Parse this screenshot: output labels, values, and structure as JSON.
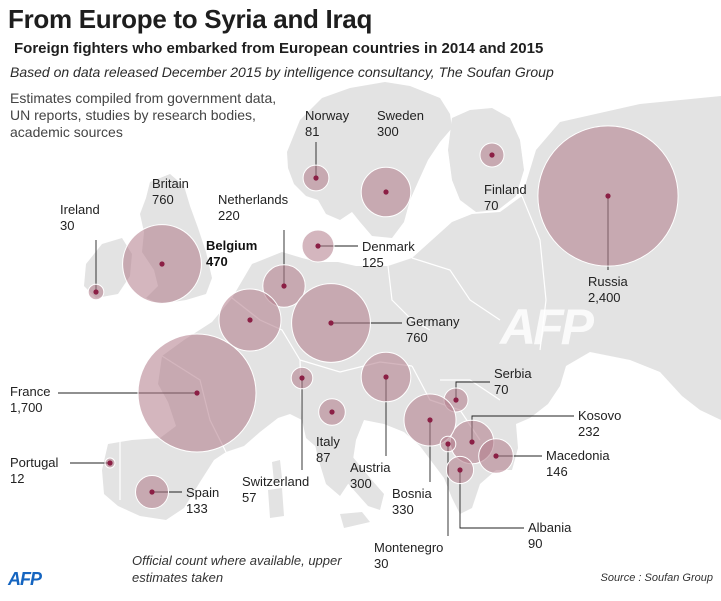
{
  "title": "From Europe to Syria and Iraq",
  "subtitle": "Foreign fighters who embarked from European countries in 2014 and 2015",
  "basis": "Based on data released December 2015 by intelligence consultancy, The Soufan Group",
  "methodology": "Estimates compiled from government data, UN reports, studies by research bodies, academic sources",
  "footnote": "Official count where available, upper estimates taken",
  "source": "Source : Soufan Group",
  "agency_logo": "AFP",
  "watermark": "AFP",
  "colors": {
    "bubble": "#b07a89",
    "dot": "#8b1f45",
    "land": "#e3e3e3",
    "sea": "#ffffff",
    "border": "#ffffff"
  },
  "countries": [
    {
      "id": "ireland",
      "name": "Ireland",
      "count": "30",
      "value": 30
    },
    {
      "id": "britain",
      "name": "Britain",
      "count": "760",
      "value": 760
    },
    {
      "id": "netherlands",
      "name": "Netherlands",
      "count": "220",
      "value": 220
    },
    {
      "id": "belgium",
      "name": "Belgium",
      "count": "470",
      "value": 470,
      "highlight": true
    },
    {
      "id": "norway",
      "name": "Norway",
      "count": "81",
      "value": 81
    },
    {
      "id": "sweden",
      "name": "Sweden",
      "count": "300",
      "value": 300
    },
    {
      "id": "finland",
      "name": "Finland",
      "count": "70",
      "value": 70
    },
    {
      "id": "denmark",
      "name": "Denmark",
      "count": "125",
      "value": 125
    },
    {
      "id": "russia",
      "name": "Russia",
      "count": "2,400",
      "value": 2400
    },
    {
      "id": "germany",
      "name": "Germany",
      "count": "760",
      "value": 760
    },
    {
      "id": "france",
      "name": "France",
      "count": "1,700",
      "value": 1700
    },
    {
      "id": "switzerland",
      "name": "Switzerland",
      "count": "57",
      "value": 57
    },
    {
      "id": "italy",
      "name": "Italy",
      "count": "87",
      "value": 87
    },
    {
      "id": "austria",
      "name": "Austria",
      "count": "300",
      "value": 300
    },
    {
      "id": "serbia",
      "name": "Serbia",
      "count": "70",
      "value": 70
    },
    {
      "id": "kosovo",
      "name": "Kosovo",
      "count": "232",
      "value": 232
    },
    {
      "id": "macedonia",
      "name": "Macedonia",
      "count": "146",
      "value": 146
    },
    {
      "id": "bosnia",
      "name": "Bosnia",
      "count": "330",
      "value": 330
    },
    {
      "id": "albania",
      "name": "Albania",
      "count": "90",
      "value": 90
    },
    {
      "id": "montenegro",
      "name": "Montenegro",
      "count": "30",
      "value": 30
    },
    {
      "id": "portugal",
      "name": "Portugal",
      "count": "12",
      "value": 12
    },
    {
      "id": "spain",
      "name": "Spain",
      "count": "133",
      "value": 133
    }
  ]
}
